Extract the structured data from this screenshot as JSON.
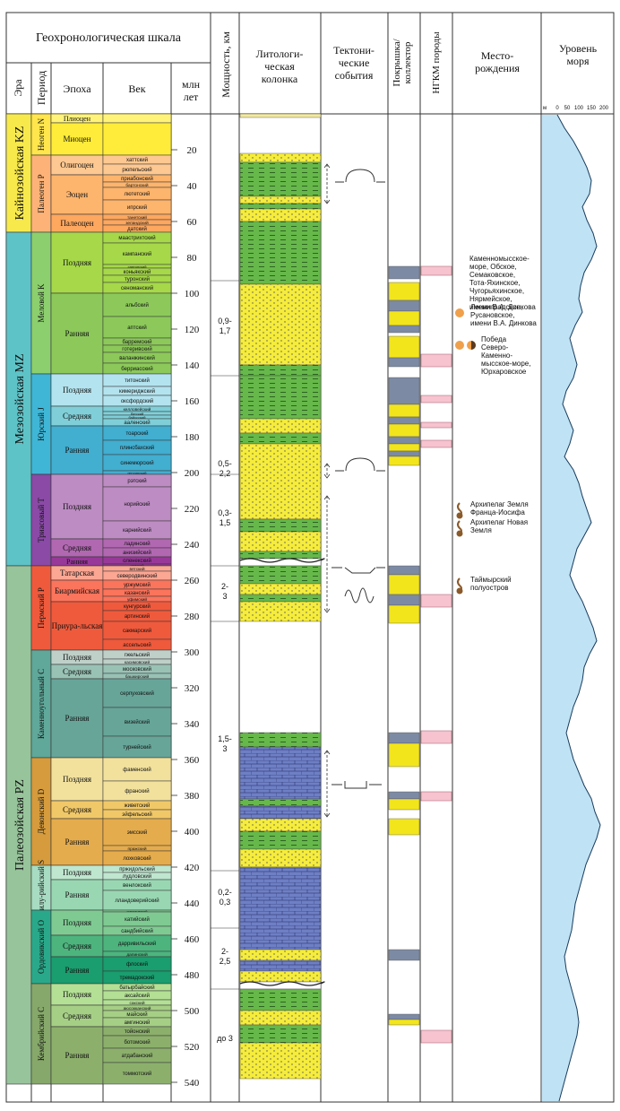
{
  "headers": {
    "geochron": "Геохронологическая шкала",
    "era": "Эра",
    "period": "Период",
    "epoch": "Эпоха",
    "age": "Век",
    "ma": [
      "млн",
      "лет"
    ],
    "thickness": "Мощность, км",
    "litho": [
      "Литологи-",
      "ческая",
      "колонка"
    ],
    "tecto": [
      "Тектони-",
      "ческие",
      "события"
    ],
    "seal": [
      "Покрышка/",
      "коллектор"
    ],
    "ngkm": "НГКМ породы",
    "fields": [
      "Место-",
      "рождения"
    ],
    "sea": [
      "Уровень",
      "моря"
    ],
    "sea_ticks": [
      "м",
      "0",
      "50",
      "100",
      "150",
      "200"
    ]
  },
  "colors": {
    "kz": "#f7e94b",
    "mz": "#5ec3c7",
    "pz": "#97c49a",
    "neogene": "#ffe64c",
    "paleogene": "#fdb377",
    "cretaceous": "#8ccf6e",
    "jurassic": "#3fb6d6",
    "triassic": "#8a4aa6",
    "permian": "#ef5a3c",
    "carboniferous": "#5fa89a",
    "devonian": "#d59b3c",
    "silurian": "#a8dcc2",
    "ordovician": "#2aa98a",
    "cambrian": "#86a86a",
    "sand": "#f5ec3c",
    "shale": "#66b84a",
    "carbonate": "#6f7fc4",
    "seal": "#7d8aa3",
    "reservoir": "#f2e51c",
    "ngkm": "#f6c3cf",
    "sea_fill": "#bfe3f5",
    "orange": "#f0a04b",
    "brown": "#8a5a2b"
  },
  "ma_ticks": [
    20,
    40,
    60,
    80,
    100,
    120,
    140,
    160,
    180,
    200,
    220,
    240,
    260,
    280,
    300,
    320,
    340,
    360,
    380,
    400,
    420,
    440,
    460,
    480,
    500,
    520,
    540
  ],
  "eras": [
    {
      "name": "Кайнозойская KZ",
      "from": 0,
      "to": 66,
      "color": "kz"
    },
    {
      "name": "Мезозойская MZ",
      "from": 66,
      "to": 252,
      "color": "mz"
    },
    {
      "name": "Палеозойская PZ",
      "from": 252,
      "to": 541,
      "color": "pz"
    }
  ],
  "periods": [
    {
      "name": "Неоген N",
      "from": 0,
      "to": 23,
      "color": "neogene"
    },
    {
      "name": "Палеоген P",
      "from": 23,
      "to": 66,
      "color": "paleogene"
    },
    {
      "name": "Меловой K",
      "from": 66,
      "to": 145,
      "color": "cretaceous"
    },
    {
      "name": "Юрский J",
      "from": 145,
      "to": 201,
      "color": "jurassic"
    },
    {
      "name": "Триасовый T",
      "from": 201,
      "to": 252,
      "color": "triassic"
    },
    {
      "name": "Пермский P",
      "from": 252,
      "to": 299,
      "color": "permian"
    },
    {
      "name": "Каменноугольный C",
      "from": 299,
      "to": 359,
      "color": "carboniferous"
    },
    {
      "name": "Девонский D",
      "from": 359,
      "to": 419,
      "color": "devonian"
    },
    {
      "name": "Силу-рийский S",
      "from": 419,
      "to": 444,
      "color": "silurian"
    },
    {
      "name": "Ордовикский O",
      "from": 444,
      "to": 485,
      "color": "ordovician"
    },
    {
      "name": "Кембрийский C",
      "from": 485,
      "to": 541,
      "color": "cambrian"
    }
  ],
  "epochs": [
    {
      "name": "Плиоцен",
      "from": 0,
      "to": 5,
      "color": "#fff37a"
    },
    {
      "name": "Миоцен",
      "from": 5,
      "to": 23,
      "color": "#ffec3a"
    },
    {
      "name": "Олигоцен",
      "from": 23,
      "to": 34,
      "color": "#fdc891"
    },
    {
      "name": "Эоцен",
      "from": 34,
      "to": 56,
      "color": "#fdb46c"
    },
    {
      "name": "Палеоцен",
      "from": 56,
      "to": 66,
      "color": "#fda75f"
    },
    {
      "name": "Поздняя",
      "from": 66,
      "to": 100,
      "color": "#a6d84a"
    },
    {
      "name": "Ранняя",
      "from": 100,
      "to": 145,
      "color": "#8cc95a"
    },
    {
      "name": "Поздняя",
      "from": 145,
      "to": 163,
      "color": "#b3e3ee"
    },
    {
      "name": "Средняя",
      "from": 163,
      "to": 174,
      "color": "#80cfd8"
    },
    {
      "name": "Ранняя",
      "from": 174,
      "to": 201,
      "color": "#42aed0"
    },
    {
      "name": "Поздняя",
      "from": 201,
      "to": 237,
      "color": "#bd8cc3"
    },
    {
      "name": "Средняя",
      "from": 237,
      "to": 247,
      "color": "#b168b1"
    },
    {
      "name": "Ранняя",
      "from": 247,
      "to": 252,
      "color": "#983999"
    },
    {
      "name": "Татарская",
      "from": 252,
      "to": 260,
      "color": "#fba794"
    },
    {
      "name": "Биармийская",
      "from": 260,
      "to": 272,
      "color": "#fb745c"
    },
    {
      "name": "Приура-льская",
      "from": 272,
      "to": 299,
      "color": "#ef5a3c"
    },
    {
      "name": "Поздняя",
      "from": 299,
      "to": 307,
      "color": "#bfd0c9"
    },
    {
      "name": "Средняя",
      "from": 307,
      "to": 315,
      "color": "#99c2b5"
    },
    {
      "name": "Ранняя",
      "from": 315,
      "to": 359,
      "color": "#67a599"
    },
    {
      "name": "Поздняя",
      "from": 359,
      "to": 383,
      "color": "#f1e19d"
    },
    {
      "name": "Средняя",
      "from": 383,
      "to": 393,
      "color": "#f1c868"
    },
    {
      "name": "Ранняя",
      "from": 393,
      "to": 419,
      "color": "#e5ac4d"
    },
    {
      "name": "Поздняя",
      "from": 419,
      "to": 427,
      "color": "#bfe6cf"
    },
    {
      "name": "Ранняя",
      "from": 427,
      "to": 444,
      "color": "#99d7b3"
    },
    {
      "name": "Поздняя",
      "from": 444,
      "to": 458,
      "color": "#7fca93"
    },
    {
      "name": "Средняя",
      "from": 458,
      "to": 470,
      "color": "#4db47e"
    },
    {
      "name": "Ранняя",
      "from": 470,
      "to": 485,
      "color": "#1a9d6f"
    },
    {
      "name": "Поздняя",
      "from": 485,
      "to": 497,
      "color": "#b3e095"
    },
    {
      "name": "Средняя",
      "from": 497,
      "to": 509,
      "color": "#a6cf86"
    },
    {
      "name": "Ранняя",
      "from": 509,
      "to": 541,
      "color": "#8cb06c"
    }
  ],
  "ages": [
    {
      "name": "",
      "from": 0,
      "to": 5
    },
    {
      "name": "",
      "from": 5,
      "to": 23
    },
    {
      "name": "хаттский",
      "from": 23,
      "to": 28
    },
    {
      "name": "рюпельский",
      "from": 28,
      "to": 34
    },
    {
      "name": "приабонский",
      "from": 34,
      "to": 38
    },
    {
      "name": "бартонский",
      "from": 38,
      "to": 41
    },
    {
      "name": "лютетский",
      "from": 41,
      "to": 48
    },
    {
      "name": "ипрский",
      "from": 48,
      "to": 56
    },
    {
      "name": "танетский",
      "from": 56,
      "to": 59
    },
    {
      "name": "зеландский",
      "from": 59,
      "to": 62
    },
    {
      "name": "датский",
      "from": 62,
      "to": 66
    },
    {
      "name": "маастрихтский",
      "from": 66,
      "to": 72
    },
    {
      "name": "кампанский",
      "from": 72,
      "to": 84
    },
    {
      "name": "сантонский",
      "from": 84,
      "to": 86
    },
    {
      "name": "коньякский",
      "from": 86,
      "to": 90
    },
    {
      "name": "туронский",
      "from": 90,
      "to": 94
    },
    {
      "name": "сеноманский",
      "from": 94,
      "to": 100
    },
    {
      "name": "альбский",
      "from": 100,
      "to": 113
    },
    {
      "name": "аптский",
      "from": 113,
      "to": 125
    },
    {
      "name": "барремский",
      "from": 125,
      "to": 129
    },
    {
      "name": "готеривский",
      "from": 129,
      "to": 133
    },
    {
      "name": "валанжинский",
      "from": 133,
      "to": 139
    },
    {
      "name": "берриасский",
      "from": 139,
      "to": 145
    },
    {
      "name": "титонский",
      "from": 145,
      "to": 152
    },
    {
      "name": "кимериджский",
      "from": 152,
      "to": 157
    },
    {
      "name": "оксфордский",
      "from": 157,
      "to": 163
    },
    {
      "name": "келловейский",
      "from": 163,
      "to": 166
    },
    {
      "name": "батский",
      "from": 166,
      "to": 168
    },
    {
      "name": "байосский",
      "from": 168,
      "to": 170
    },
    {
      "name": "ааленский",
      "from": 170,
      "to": 174
    },
    {
      "name": "тоарский",
      "from": 174,
      "to": 182
    },
    {
      "name": "плинсбахский",
      "from": 182,
      "to": 190
    },
    {
      "name": "синемюрский",
      "from": 190,
      "to": 199
    },
    {
      "name": "геттангский",
      "from": 199,
      "to": 201
    },
    {
      "name": "рэтский",
      "from": 201,
      "to": 208
    },
    {
      "name": "норийский",
      "from": 208,
      "to": 227
    },
    {
      "name": "карнийский",
      "from": 227,
      "to": 237
    },
    {
      "name": "ладинский",
      "from": 237,
      "to": 242
    },
    {
      "name": "анизийский",
      "from": 242,
      "to": 247
    },
    {
      "name": "оленекский",
      "from": 247,
      "to": 251
    },
    {
      "name": "индский",
      "from": 251,
      "to": 252
    },
    {
      "name": "вятский",
      "from": 252,
      "to": 255
    },
    {
      "name": "северодвинский",
      "from": 255,
      "to": 260
    },
    {
      "name": "уржумский",
      "from": 260,
      "to": 265
    },
    {
      "name": "казанский",
      "from": 265,
      "to": 269
    },
    {
      "name": "уфимский",
      "from": 269,
      "to": 272
    },
    {
      "name": "кунгурский",
      "from": 272,
      "to": 277
    },
    {
      "name": "артинский",
      "from": 277,
      "to": 283
    },
    {
      "name": "сакмарский",
      "from": 283,
      "to": 293
    },
    {
      "name": "ассельский",
      "from": 293,
      "to": 299
    },
    {
      "name": "гжельский",
      "from": 299,
      "to": 304
    },
    {
      "name": "касимовский",
      "from": 304,
      "to": 307
    },
    {
      "name": "московский",
      "from": 307,
      "to": 312
    },
    {
      "name": "башкирский",
      "from": 312,
      "to": 315
    },
    {
      "name": "серпуховский",
      "from": 315,
      "to": 331
    },
    {
      "name": "визейский",
      "from": 331,
      "to": 347
    },
    {
      "name": "турнейский",
      "from": 347,
      "to": 359
    },
    {
      "name": "фаменский",
      "from": 359,
      "to": 372
    },
    {
      "name": "франский",
      "from": 372,
      "to": 383
    },
    {
      "name": "живетский",
      "from": 383,
      "to": 388
    },
    {
      "name": "эйфельский",
      "from": 388,
      "to": 393
    },
    {
      "name": "эмсский",
      "from": 393,
      "to": 408
    },
    {
      "name": "пражский",
      "from": 408,
      "to": 411
    },
    {
      "name": "лохковский",
      "from": 411,
      "to": 419
    },
    {
      "name": "пржидольский",
      "from": 419,
      "to": 423
    },
    {
      "name": "лудловский",
      "from": 423,
      "to": 427
    },
    {
      "name": "венлокский",
      "from": 427,
      "to": 433
    },
    {
      "name": "лландоверийский",
      "from": 433,
      "to": 444
    },
    {
      "name": "хирнантский",
      "from": 444,
      "to": 445
    },
    {
      "name": "катийский",
      "from": 445,
      "to": 453
    },
    {
      "name": "сандбийский",
      "from": 453,
      "to": 458
    },
    {
      "name": "дарривильский",
      "from": 458,
      "to": 467
    },
    {
      "name": "дапинский",
      "from": 467,
      "to": 470
    },
    {
      "name": "флоский",
      "from": 470,
      "to": 478
    },
    {
      "name": "тремадокский",
      "from": 478,
      "to": 485
    },
    {
      "name": "батырбайский",
      "from": 485,
      "to": 489
    },
    {
      "name": "аксайский",
      "from": 489,
      "to": 494
    },
    {
      "name": "сакский",
      "from": 494,
      "to": 497
    },
    {
      "name": "аюсокканский",
      "from": 497,
      "to": 500
    },
    {
      "name": "майский",
      "from": 500,
      "to": 504
    },
    {
      "name": "амгинский",
      "from": 504,
      "to": 509
    },
    {
      "name": "тойонский",
      "from": 509,
      "to": 514
    },
    {
      "name": "ботомский",
      "from": 514,
      "to": 521
    },
    {
      "name": "атдабанский",
      "from": 521,
      "to": 529
    },
    {
      "name": "томмотский",
      "from": 529,
      "to": 541
    }
  ],
  "thickness": [
    {
      "label": [
        "0,9-",
        "1,7"
      ],
      "from": 93,
      "to": 146
    },
    {
      "label": [
        "0,5-",
        "2,2"
      ],
      "from": 146,
      "to": 252
    },
    {
      "label": [
        "0,3-",
        "1,5"
      ],
      "from": 201,
      "to": 252
    },
    {
      "label": [
        "2-",
        "3"
      ],
      "from": 252,
      "to": 283
    },
    {
      "label": [
        "1,5-",
        "3"
      ],
      "from": 283,
      "to": 422
    },
    {
      "label": [
        "0,2-",
        "0,3"
      ],
      "from": 422,
      "to": 454
    },
    {
      "label": [
        "2-",
        "2,5"
      ],
      "from": 454,
      "to": 488
    },
    {
      "label": [
        "до 3"
      ],
      "from": 488,
      "to": 546
    }
  ],
  "litho": [
    {
      "type": "sand",
      "from": 22,
      "to": 27
    },
    {
      "type": "shale",
      "from": 27,
      "to": 46
    },
    {
      "type": "sand",
      "from": 46,
      "to": 50
    },
    {
      "type": "shale",
      "from": 50,
      "to": 53
    },
    {
      "type": "sand",
      "from": 53,
      "to": 60
    },
    {
      "type": "shale",
      "from": 60,
      "to": 95
    },
    {
      "type": "sand",
      "from": 95,
      "to": 140
    },
    {
      "type": "shale",
      "from": 140,
      "to": 146
    },
    {
      "type": "shale",
      "from": 146,
      "to": 170
    },
    {
      "type": "sand",
      "from": 170,
      "to": 178
    },
    {
      "type": "shale",
      "from": 178,
      "to": 184
    },
    {
      "type": "sand",
      "from": 184,
      "to": 226
    },
    {
      "type": "shale",
      "from": 226,
      "to": 233
    },
    {
      "type": "sand",
      "from": 233,
      "to": 244
    },
    {
      "type": "shale",
      "from": 244,
      "to": 248
    },
    {
      "type": "gap",
      "from": 248,
      "to": 252
    },
    {
      "type": "shale",
      "from": 252,
      "to": 262
    },
    {
      "type": "sand",
      "from": 262,
      "to": 268
    },
    {
      "type": "shale",
      "from": 268,
      "to": 272
    },
    {
      "type": "sand",
      "from": 272,
      "to": 283
    },
    {
      "type": "shale",
      "from": 345,
      "to": 353
    },
    {
      "type": "carbonate",
      "from": 353,
      "to": 382
    },
    {
      "type": "shale",
      "from": 382,
      "to": 386
    },
    {
      "type": "carbonate",
      "from": 386,
      "to": 393
    },
    {
      "type": "sand",
      "from": 393,
      "to": 400
    },
    {
      "type": "shale",
      "from": 400,
      "to": 410
    },
    {
      "type": "sand",
      "from": 410,
      "to": 420
    },
    {
      "type": "carbonate",
      "from": 420,
      "to": 466
    },
    {
      "type": "sand",
      "from": 466,
      "to": 472
    },
    {
      "type": "carbonate",
      "from": 472,
      "to": 478
    },
    {
      "type": "sand",
      "from": 478,
      "to": 484
    },
    {
      "type": "gap",
      "from": 484,
      "to": 488
    },
    {
      "type": "shale",
      "from": 488,
      "to": 500
    },
    {
      "type": "sand",
      "from": 500,
      "to": 508
    },
    {
      "type": "shale",
      "from": 508,
      "to": 518
    },
    {
      "type": "sand",
      "from": 518,
      "to": 538
    }
  ],
  "seal_reservoir": [
    {
      "type": "seal",
      "from": 85,
      "to": 92
    },
    {
      "type": "reservoir",
      "from": 94,
      "to": 104
    },
    {
      "type": "seal",
      "from": 104,
      "to": 110
    },
    {
      "type": "reservoir",
      "from": 110,
      "to": 118
    },
    {
      "type": "seal",
      "from": 118,
      "to": 122
    },
    {
      "type": "reservoir",
      "from": 124,
      "to": 136
    },
    {
      "type": "seal",
      "from": 136,
      "to": 141
    },
    {
      "type": "seal",
      "from": 147,
      "to": 162
    },
    {
      "type": "reservoir",
      "from": 162,
      "to": 169
    },
    {
      "type": "seal",
      "from": 169,
      "to": 173
    },
    {
      "type": "reservoir",
      "from": 173,
      "to": 180
    },
    {
      "type": "seal",
      "from": 180,
      "to": 184
    },
    {
      "type": "reservoir",
      "from": 184,
      "to": 188
    },
    {
      "type": "seal",
      "from": 188,
      "to": 191
    },
    {
      "type": "reservoir",
      "from": 191,
      "to": 196
    },
    {
      "type": "seal",
      "from": 252,
      "to": 257
    },
    {
      "type": "reservoir",
      "from": 257,
      "to": 268
    },
    {
      "type": "seal",
      "from": 268,
      "to": 274
    },
    {
      "type": "reservoir",
      "from": 274,
      "to": 284
    },
    {
      "type": "seal",
      "from": 345,
      "to": 351
    },
    {
      "type": "reservoir",
      "from": 351,
      "to": 364
    },
    {
      "type": "seal",
      "from": 378,
      "to": 382
    },
    {
      "type": "reservoir",
      "from": 382,
      "to": 388
    },
    {
      "type": "reservoir",
      "from": 393,
      "to": 402
    },
    {
      "type": "seal",
      "from": 466,
      "to": 472
    },
    {
      "type": "seal",
      "from": 502,
      "to": 505
    },
    {
      "type": "reservoir",
      "from": 505,
      "to": 508
    }
  ],
  "ngkm": [
    {
      "from": 85,
      "to": 90
    },
    {
      "from": 134,
      "to": 141
    },
    {
      "from": 157,
      "to": 161
    },
    {
      "from": 172,
      "to": 175
    },
    {
      "from": 182,
      "to": 186
    },
    {
      "from": 268,
      "to": 275
    },
    {
      "from": 344,
      "to": 351
    },
    {
      "from": 378,
      "to": 383
    },
    {
      "from": 511,
      "to": 518
    }
  ],
  "tectonic": [
    {
      "kind": "dome",
      "at": 38,
      "arrow_from": 28,
      "arrow_to": 50
    },
    {
      "kind": "dome",
      "at": 199,
      "arrow_from": 195,
      "arrow_to": 203
    },
    {
      "kind": "rift",
      "at": 253,
      "arrow_from": 213,
      "arrow_to": 278
    },
    {
      "kind": "compress",
      "at": 374,
      "arrow_from": 355,
      "arrow_to": 392
    }
  ],
  "fields": [
    {
      "at": 83,
      "icons": [],
      "lines": [
        "Каменномысское-",
        "море, Обское,",
        "Семаковское,",
        "Тота-Яхинское,",
        "Чугорьяхинское,",
        "Нярмейское,",
        "имени В.А. Динкова"
      ]
    },
    {
      "at": 110,
      "icons": [
        "orange"
      ],
      "lines": [
        "Ленинградское,",
        "Русановское,",
        "имени В.А. Динкова"
      ]
    },
    {
      "at": 128,
      "icons": [
        "orange",
        "half"
      ],
      "lines": [
        "Победа",
        "Северо-",
        "Каменно-",
        "мысское-море,",
        "Юрхаровское"
      ]
    },
    {
      "at": 220,
      "icons": [
        "brown"
      ],
      "lines": [
        "Архипелаг Земля",
        "Франца-Иосифа"
      ]
    },
    {
      "at": 230,
      "icons": [
        "brown"
      ],
      "lines": [
        "Архипелаг Новая",
        "Земля"
      ]
    },
    {
      "at": 262,
      "icons": [
        "brown"
      ],
      "lines": [
        "Таймырский",
        "полуостров"
      ]
    }
  ]
}
